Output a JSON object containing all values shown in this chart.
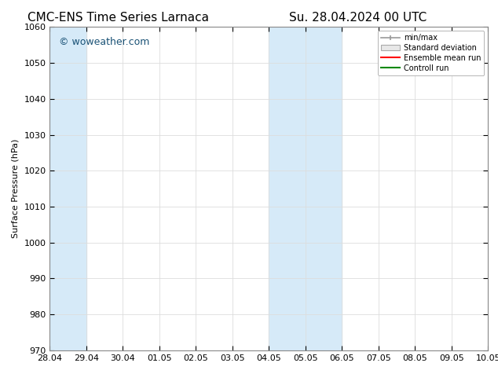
{
  "title_left": "CMC-ENS Time Series Larnaca",
  "title_right": "Su. 28.04.2024 00 UTC",
  "ylabel": "Surface Pressure (hPa)",
  "ylim": [
    970,
    1060
  ],
  "yticks": [
    970,
    980,
    990,
    1000,
    1010,
    1020,
    1030,
    1040,
    1050,
    1060
  ],
  "xtick_labels": [
    "28.04",
    "29.04",
    "30.04",
    "01.05",
    "02.05",
    "03.05",
    "04.05",
    "05.05",
    "06.05",
    "07.05",
    "08.05",
    "09.05",
    "10.05"
  ],
  "xtick_positions": [
    0,
    1,
    2,
    3,
    4,
    5,
    6,
    7,
    8,
    9,
    10,
    11,
    12
  ],
  "xlim": [
    0,
    12
  ],
  "shaded_bands": [
    {
      "x_start": 0.0,
      "x_end": 1.0,
      "color": "#d6eaf8"
    },
    {
      "x_start": 6.0,
      "x_end": 7.0,
      "color": "#d6eaf8"
    },
    {
      "x_start": 7.0,
      "x_end": 8.0,
      "color": "#d6eaf8"
    }
  ],
  "watermark": "© woweather.com",
  "watermark_color": "#1a5276",
  "background_color": "#ffffff",
  "plot_bg_color": "#ffffff",
  "legend_labels": [
    "min/max",
    "Standard deviation",
    "Ensemble mean run",
    "Controll run"
  ],
  "legend_colors": [
    "#999999",
    "#cccccc",
    "#ff0000",
    "#008800"
  ],
  "title_fontsize": 11,
  "axis_label_fontsize": 8,
  "tick_fontsize": 8,
  "watermark_fontsize": 9
}
